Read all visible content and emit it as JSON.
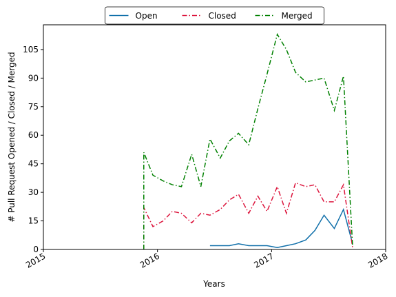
{
  "chart_data": {
    "type": "line",
    "xlabel": "Years",
    "ylabel": "# Pull Request Opened / Closed / Merged",
    "x": [
      2015.88,
      2015.88,
      2015.96,
      2016.05,
      2016.13,
      2016.21,
      2016.3,
      2016.38,
      2016.46,
      2016.55,
      2016.63,
      2016.71,
      2016.8,
      2016.88,
      2016.96,
      2017.05,
      2017.13,
      2017.21,
      2017.3,
      2017.38,
      2017.46,
      2017.55,
      2017.63,
      2017.71
    ],
    "series": [
      {
        "name": "Open",
        "color": "#1170aa",
        "dash": "solid",
        "values": [
          null,
          null,
          null,
          null,
          null,
          null,
          null,
          null,
          2,
          2,
          2,
          3,
          2,
          2,
          2,
          1,
          2,
          3,
          5,
          10,
          18,
          11,
          21,
          3
        ]
      },
      {
        "name": "Closed",
        "color": "#dc143c",
        "dash": "dashdot",
        "values": [
          0,
          22,
          12,
          15,
          20,
          19,
          14,
          19,
          18,
          21,
          26,
          29,
          19,
          28,
          20,
          33,
          19,
          35,
          33,
          34,
          25,
          25,
          34,
          1
        ]
      },
      {
        "name": "Merged",
        "color": "#008000",
        "dash": "dashdot",
        "values": [
          0,
          51,
          39,
          36,
          34,
          33,
          50,
          33,
          58,
          48,
          57,
          61,
          55,
          74,
          92,
          113,
          105,
          93,
          88,
          89,
          90,
          73,
          91,
          2
        ]
      }
    ],
    "xlim": [
      2015,
      2018
    ],
    "xticks": [
      2015,
      2016,
      2017,
      2018
    ],
    "ylim": [
      0,
      118
    ],
    "yticks": [
      0,
      15,
      30,
      45,
      60,
      75,
      90,
      105
    ],
    "grid": false,
    "legend": "upper center"
  }
}
